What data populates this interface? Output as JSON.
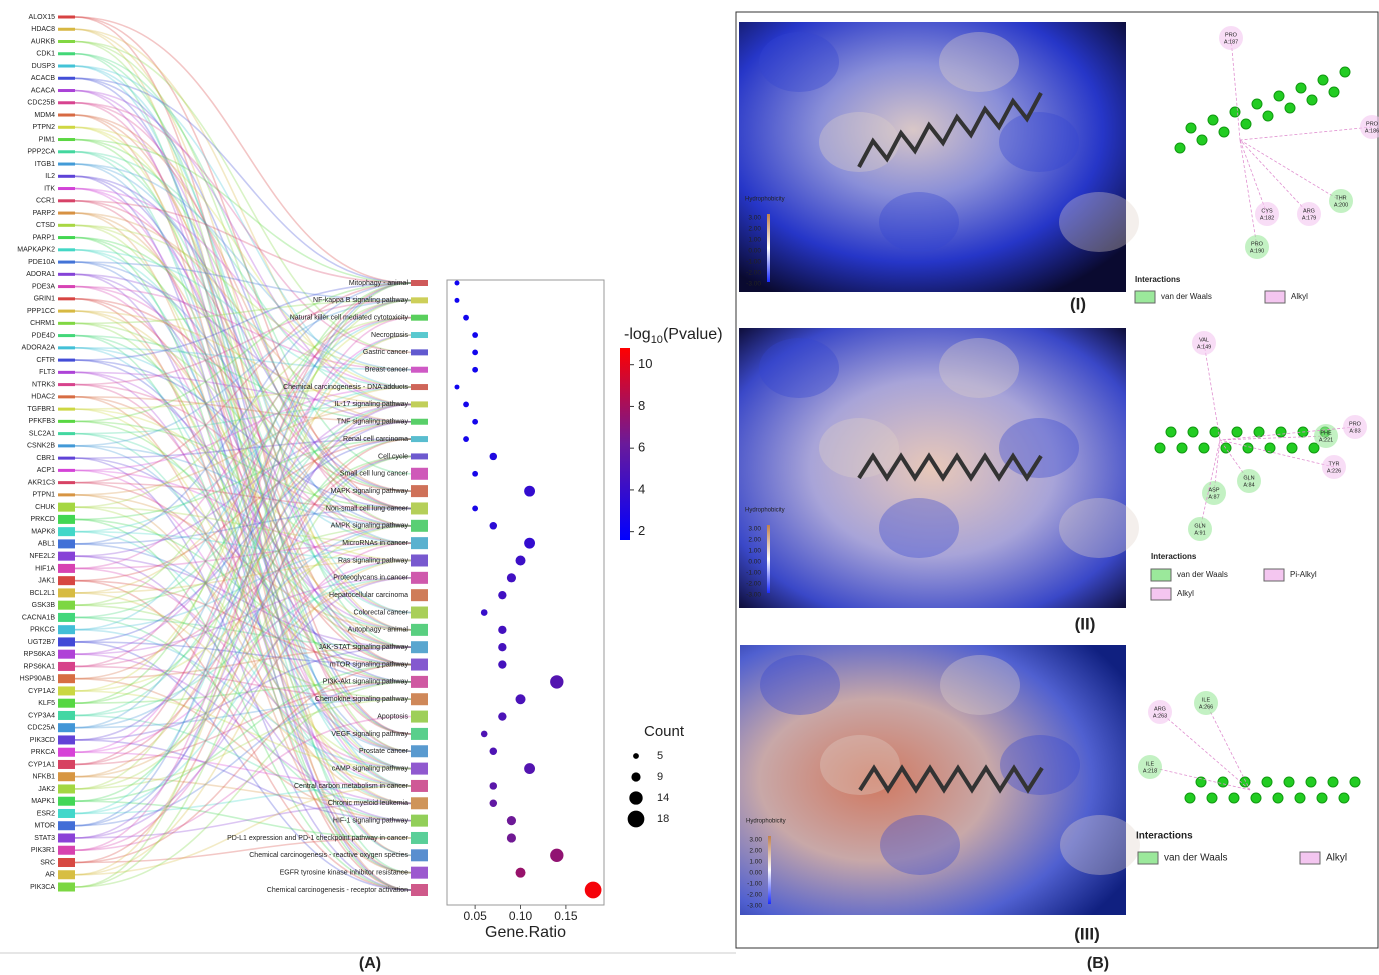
{
  "chart_data": [
    {
      "type": "sankey",
      "nodes_left": [
        "ALOX15",
        "HDAC8",
        "AURKB",
        "CDK1",
        "DUSP3",
        "ACACB",
        "ACACA",
        "CDC25B",
        "MDM4",
        "PTPN2",
        "PIM1",
        "PPP2CA",
        "ITGB1",
        "IL2",
        "ITK",
        "CCR1",
        "PARP2",
        "CTSD",
        "PARP1",
        "MAPKAPK2",
        "PDE10A",
        "ADORA1",
        "PDE3A",
        "GRIN1",
        "PPP1CC",
        "CHRM1",
        "PDE4D",
        "ADORA2A",
        "CFTR",
        "FLT3",
        "NTRK3",
        "HDAC2",
        "TGFBR1",
        "PFKFB3",
        "SLC2A1",
        "CSNK2B",
        "CBR1",
        "ACP1",
        "AKR1C3",
        "PTPN1",
        "CHUK",
        "PRKCD",
        "MAPK8",
        "ABL1",
        "NFE2L2",
        "HIF1A",
        "JAK1",
        "BCL2L1",
        "GSK3B",
        "CACNA1B",
        "PRKCG",
        "UGT2B7",
        "RPS6KA3",
        "RPS6KA1",
        "HSP90AB1",
        "CYP1A2",
        "KLF5",
        "CYP3A4",
        "CDC25A",
        "PIK3CD",
        "PRKCA",
        "CYP1A1",
        "NFKB1",
        "JAK2",
        "MAPK1",
        "ESR2",
        "MTOR",
        "STAT3",
        "PIK3R1",
        "SRC",
        "AR",
        "PIK3CA"
      ],
      "panel_label": "(A)"
    },
    {
      "type": "scatter",
      "x_label": "Gene.Ratio",
      "categories": [
        "Mitophagy - animal",
        "NF-kappa B signaling pathway",
        "Natural killer cell mediated cytotoxicity",
        "Necroptosis",
        "Gastric cancer",
        "Breast cancer",
        "Chemical carcinogenesis - DNA adducts",
        "IL-17 signaling pathway",
        "TNF signaling pathway",
        "Renal cell carcinoma",
        "Cell cycle",
        "Small cell lung cancer",
        "MAPK signaling pathway",
        "Non-small cell lung cancer",
        "AMPK signaling pathway",
        "MicroRNAs in cancer",
        "Ras signaling pathway",
        "Proteoglycans in cancer",
        "Hepatocellular carcinoma",
        "Colorectal cancer",
        "Autophagy - animal",
        "JAK-STAT signaling pathway",
        "mTOR signaling pathway",
        "PI3K-Akt signaling pathway",
        "Chemokine signaling pathway",
        "Apoptosis",
        "VEGF signaling pathway",
        "Prostate cancer",
        "cAMP signaling pathway",
        "Central carbon metabolism in cancer",
        "Chronic myeloid leukemia",
        "HIF-1 signaling pathway",
        "PD-L1 expression and PD-1 checkpoint pathway in cancer",
        "Chemical carcinogenesis - reactive oxygen species",
        "EGFR tyrosine kinase inhibitor resistance",
        "Chemical carcinogenesis - receptor activation"
      ],
      "x": [
        0.03,
        0.03,
        0.04,
        0.05,
        0.05,
        0.05,
        0.03,
        0.04,
        0.05,
        0.04,
        0.07,
        0.05,
        0.11,
        0.05,
        0.07,
        0.11,
        0.1,
        0.09,
        0.08,
        0.06,
        0.08,
        0.08,
        0.08,
        0.14,
        0.1,
        0.08,
        0.06,
        0.07,
        0.11,
        0.07,
        0.07,
        0.09,
        0.09,
        0.14,
        0.1,
        0.18
      ],
      "sizes": [
        4,
        4,
        5,
        5,
        5,
        5,
        4,
        5,
        5,
        5,
        7,
        5,
        11,
        5,
        7,
        11,
        10,
        9,
        8,
        6,
        8,
        8,
        8,
        14,
        10,
        8,
        6,
        7,
        11,
        7,
        7,
        9,
        9,
        14,
        10,
        18
      ],
      "neg_log10_p": [
        2.3,
        2.3,
        2.4,
        2.4,
        2.4,
        2.4,
        2.3,
        2.5,
        2.5,
        2.5,
        3.0,
        2.6,
        3.8,
        2.7,
        3.5,
        3.8,
        4.2,
        4.4,
        4.4,
        4.0,
        4.5,
        4.6,
        4.6,
        5.2,
        4.8,
        4.9,
        5.0,
        5.0,
        5.2,
        5.5,
        5.8,
        6.3,
        6.4,
        7.4,
        7.6,
        10.5
      ],
      "xlim": [
        0.019,
        0.192
      ],
      "xticks": [
        0.05,
        {
          "value": 0.1,
          "label": "0.10"
        },
        0.15
      ],
      "color_title": {
        "prefix": "-log",
        "sub": "10",
        "suffix": "(Pvalue)"
      },
      "clim": [
        1.6,
        10.8
      ],
      "cticks": [
        2,
        4,
        6,
        8,
        10
      ],
      "colors": [
        "#0000ff",
        "#6a1a9a",
        "#ff0000"
      ],
      "size_title": "Count",
      "size_ticks": [
        5,
        9,
        14,
        18
      ]
    }
  ],
  "panel_b": {
    "panel_label": "(B)",
    "hydrophobicity_title": "Hydrophobicity",
    "hydro_ticks": [
      "3.00",
      "2.00",
      "1.00",
      "0.00",
      "-1.00",
      "-2.00",
      "-3.00"
    ],
    "interactions_title": "Interactions",
    "panels": [
      {
        "label": "(I)",
        "residues": [
          {
            "name": "PRO",
            "chain": "A:187",
            "kind": "alkyl"
          },
          {
            "name": "PRO",
            "chain": "A:186",
            "kind": "alkyl"
          },
          {
            "name": "CYS",
            "chain": "A:182",
            "kind": "alkyl"
          },
          {
            "name": "ARG",
            "chain": "A:179",
            "kind": "alkyl"
          },
          {
            "name": "THR",
            "chain": "A:200",
            "kind": "vdw"
          },
          {
            "name": "PRO",
            "chain": "A:190",
            "kind": "vdw"
          }
        ],
        "legend": [
          {
            "text": "van der Waals",
            "kind": "vdw"
          },
          {
            "text": "Alkyl",
            "kind": "alkyl"
          }
        ]
      },
      {
        "label": "(II)",
        "residues": [
          {
            "name": "VAL",
            "chain": "A:149",
            "kind": "alkyl"
          },
          {
            "name": "PHE",
            "chain": "A:221",
            "kind": "vdw"
          },
          {
            "name": "PRO",
            "chain": "A:83",
            "kind": "alkyl"
          },
          {
            "name": "TYR",
            "chain": "A:226",
            "kind": "alkyl"
          },
          {
            "name": "ASP",
            "chain": "A:87",
            "kind": "vdw"
          },
          {
            "name": "GLN",
            "chain": "A:84",
            "kind": "vdw"
          },
          {
            "name": "GLN",
            "chain": "A:91",
            "kind": "vdw"
          }
        ],
        "legend": [
          {
            "text": "van der Waals",
            "kind": "vdw"
          },
          {
            "text": "Pi-Alkyl",
            "kind": "alkyl"
          },
          {
            "text": "Alkyl",
            "kind": "alkyl"
          }
        ]
      },
      {
        "label": "(III)",
        "residues": [
          {
            "name": "ARG",
            "chain": "A:263",
            "kind": "alkyl"
          },
          {
            "name": "ILE",
            "chain": "A:266",
            "kind": "vdw"
          },
          {
            "name": "ILE",
            "chain": "A:218",
            "kind": "vdw"
          }
        ],
        "legend": [
          {
            "text": "van der Waals",
            "kind": "vdw"
          },
          {
            "text": "Alkyl",
            "kind": "alkyl"
          }
        ]
      }
    ]
  }
}
